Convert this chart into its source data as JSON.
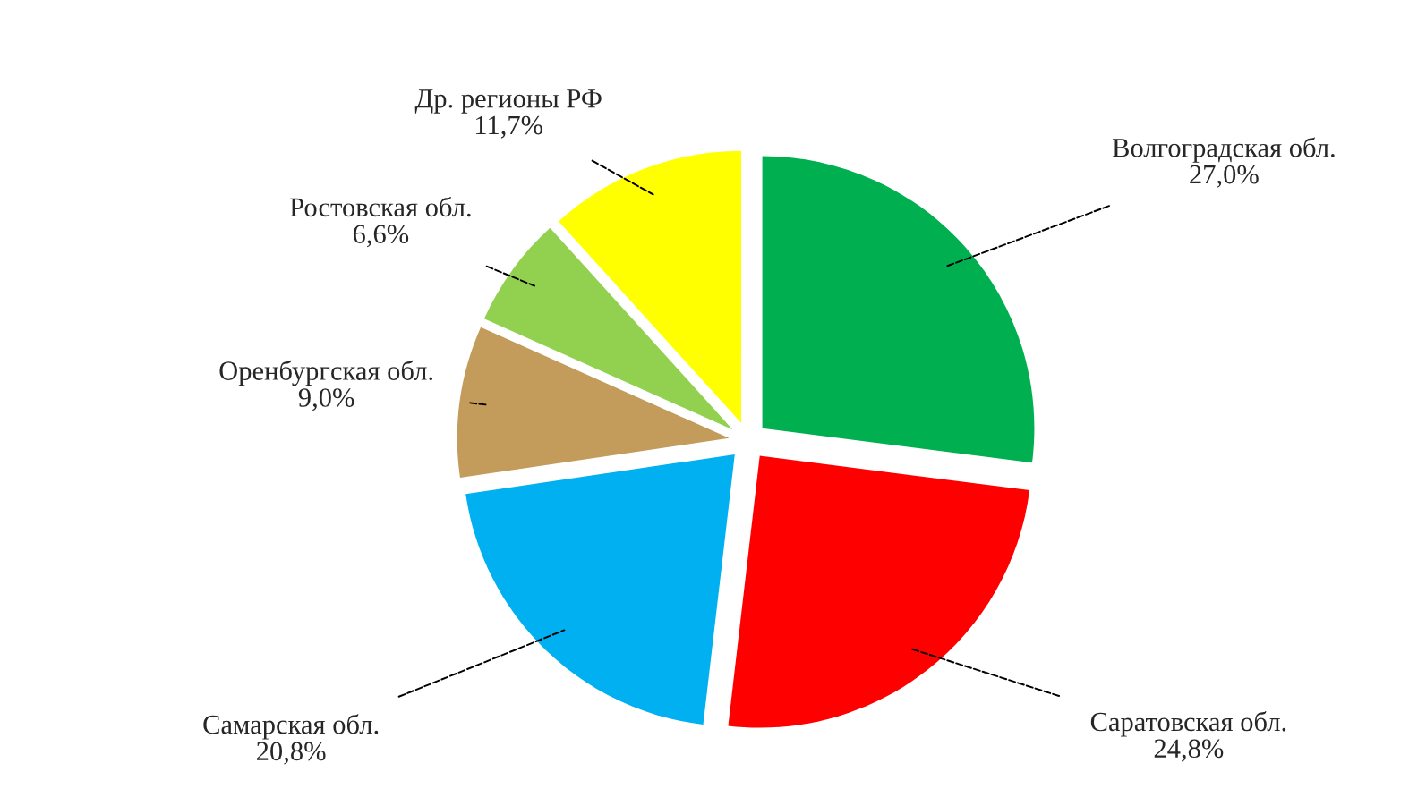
{
  "chart_data": {
    "type": "pie",
    "categories": [
      "Волгоградская обл.",
      "Саратовская обл.",
      "Самарская обл.",
      "Оренбургская обл.",
      "Ростовская обл.",
      "Др. регионы РФ"
    ],
    "values": [
      27.0,
      24.8,
      20.8,
      9.0,
      6.6,
      11.7
    ],
    "value_labels": [
      "27,0%",
      "24,8%",
      "20,8%",
      "9,0%",
      "6,6%",
      "11,7%"
    ],
    "colors": [
      "#00b050",
      "#ff0000",
      "#00b0f0",
      "#c39b5b",
      "#92d050",
      "#ffff00"
    ],
    "legend": false
  }
}
